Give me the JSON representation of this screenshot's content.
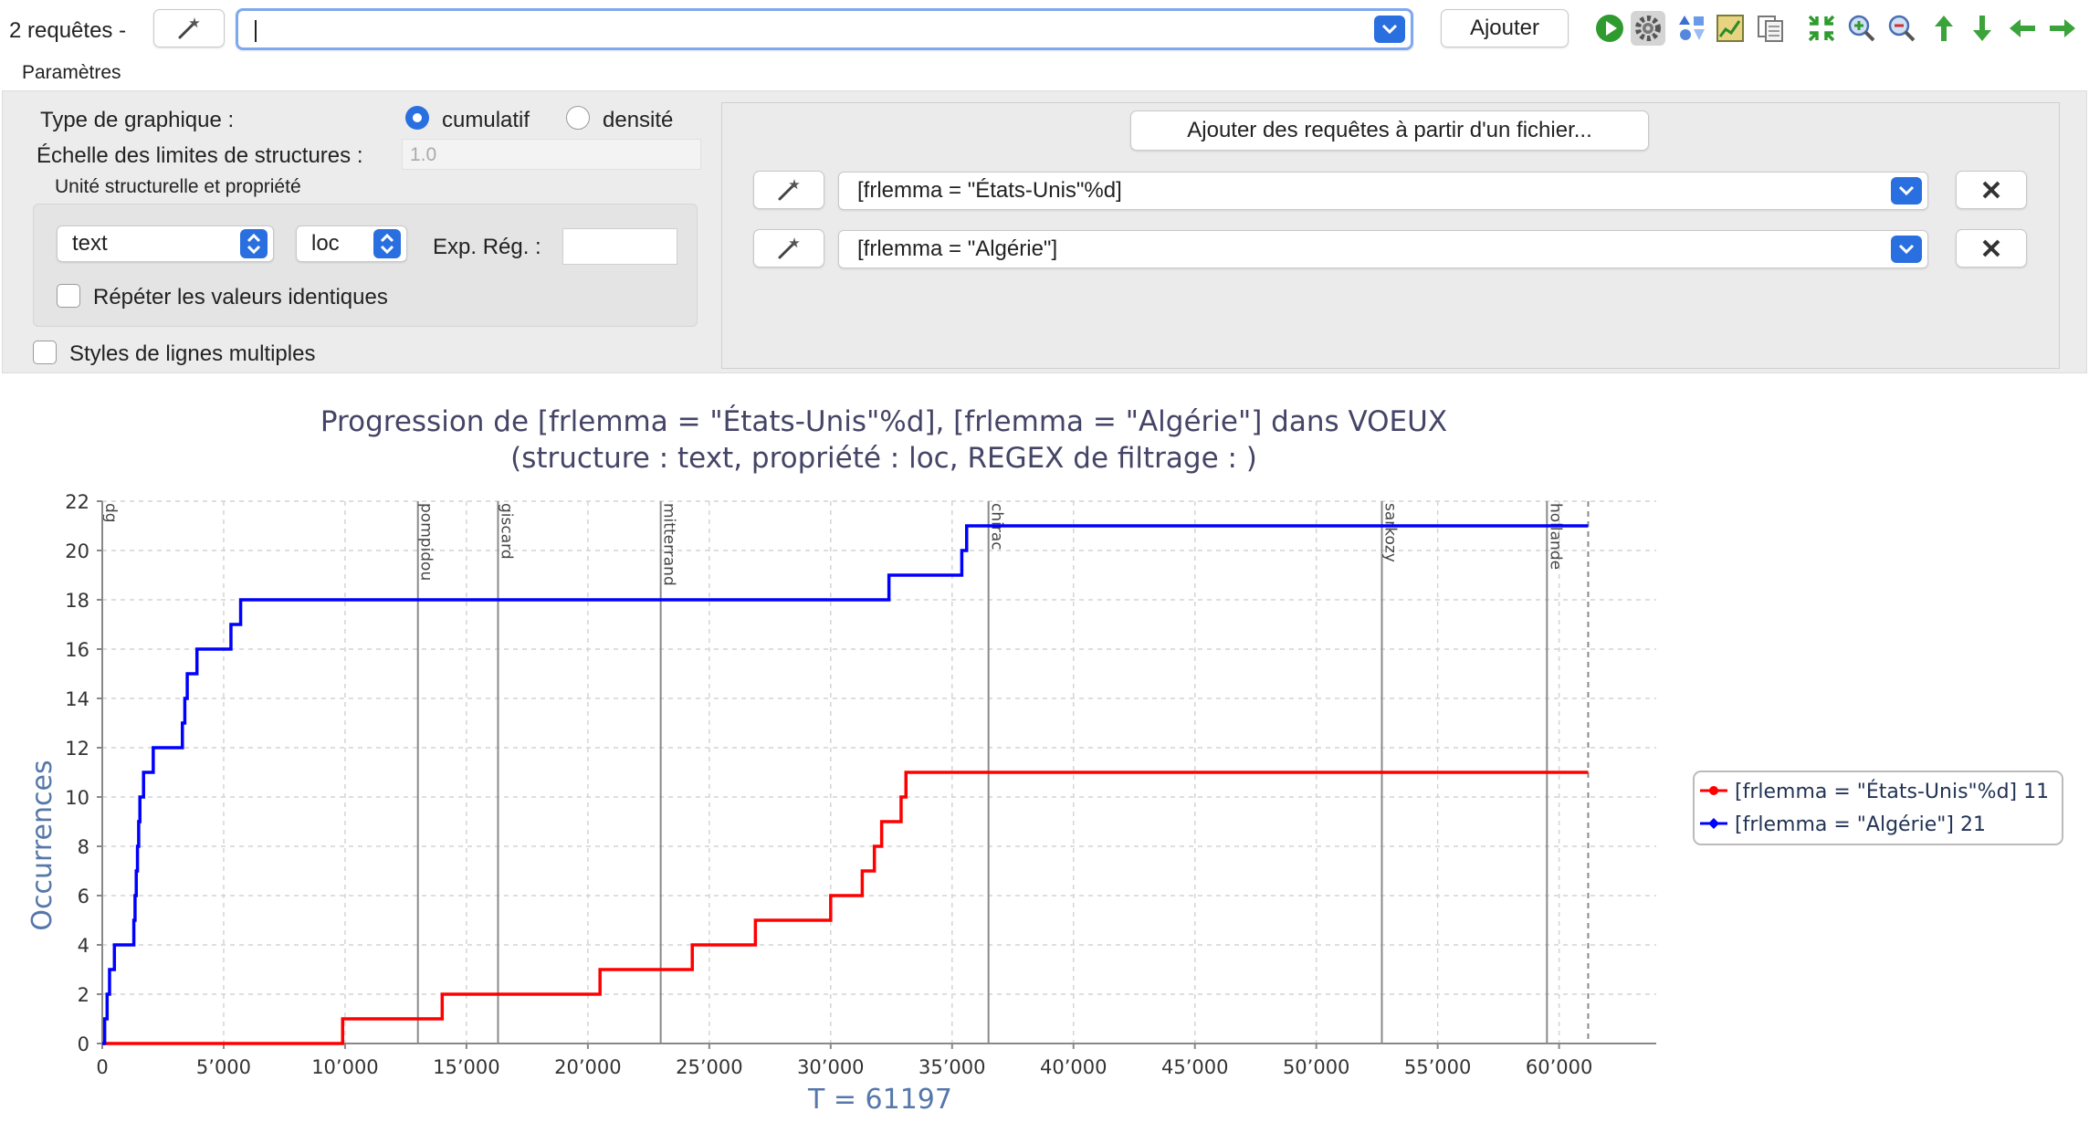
{
  "toolbar": {
    "query_count_label": "2 requêtes -",
    "query_input_value": "",
    "add_button_label": "Ajouter",
    "icons": [
      "play-icon",
      "settings-icon",
      "shapes-icon",
      "chart-export-icon",
      "copy-icon",
      "fit-icon",
      "zoom-in-icon",
      "zoom-out-icon",
      "arrow-up-icon",
      "arrow-down-icon",
      "arrow-left-icon",
      "arrow-right-icon"
    ]
  },
  "params": {
    "section_label": "Paramètres",
    "chart_type_label": "Type de graphique :",
    "option_cumulative": "cumulatif",
    "option_density": "densité",
    "selected_option": "cumulatif",
    "structure_scale_label": "Échelle des limites de structures :",
    "structure_scale_value": "1.0",
    "unit_group_label": "Unité structurelle et propriété",
    "unit_select_value": "text",
    "property_select_value": "loc",
    "regex_label": "Exp. Rég. :",
    "regex_value": "",
    "repeat_values_label": "Répéter les valeurs identiques",
    "multi_line_styles_label": "Styles de lignes multiples"
  },
  "queries_panel": {
    "add_from_file_label": "Ajouter des requêtes à partir d'un fichier...",
    "queries": [
      {
        "value": "[frlemma = \"États-Unis\"%d]"
      },
      {
        "value": "[frlemma = \"Algérie\"]"
      }
    ]
  },
  "chart_data": {
    "type": "line",
    "title": "Progression de [frlemma = \"États-Unis\"%d], [frlemma = \"Algérie\"] dans VOEUX",
    "subtitle": "(structure :  text, propriété :  loc, REGEX de filtrage : )",
    "xlabel": "T = 61197",
    "ylabel": "Occurrences",
    "xlim": [
      0,
      64000
    ],
    "ylim": [
      0,
      22
    ],
    "x_ticks": [
      0,
      5000,
      10000,
      15000,
      20000,
      25000,
      30000,
      35000,
      40000,
      45000,
      50000,
      55000,
      60000
    ],
    "x_tick_labels": [
      "0",
      "5’000",
      "10’000",
      "15’000",
      "20’000",
      "25’000",
      "30’000",
      "35’000",
      "40’000",
      "45’000",
      "50’000",
      "55’000",
      "60’000"
    ],
    "y_ticks": [
      0,
      2,
      4,
      6,
      8,
      10,
      12,
      14,
      16,
      18,
      20,
      22
    ],
    "grid": true,
    "legend_position": "right",
    "structure_markers": [
      {
        "label": "dg",
        "x": 0
      },
      {
        "label": "pompidou",
        "x": 13000
      },
      {
        "label": "giscard",
        "x": 16300
      },
      {
        "label": "mitterrand",
        "x": 23000
      },
      {
        "label": "chirac",
        "x": 36500
      },
      {
        "label": "sarkozy",
        "x": 52700
      },
      {
        "label": "hollande",
        "x": 59500
      }
    ],
    "end_x": 61197,
    "series": [
      {
        "name": "[frlemma = \"États-Unis\"%d] 11",
        "color": "#ff0000",
        "steps": [
          [
            0,
            0
          ],
          [
            9900,
            1
          ],
          [
            14000,
            2
          ],
          [
            20500,
            3
          ],
          [
            24300,
            4
          ],
          [
            26900,
            5
          ],
          [
            30000,
            6
          ],
          [
            31300,
            7
          ],
          [
            31800,
            8
          ],
          [
            32100,
            9
          ],
          [
            32900,
            10
          ],
          [
            33100,
            11
          ],
          [
            61197,
            11
          ]
        ]
      },
      {
        "name": "[frlemma = \"Algérie\"] 21",
        "color": "#0000ff",
        "steps": [
          [
            0,
            0
          ],
          [
            100,
            1
          ],
          [
            200,
            2
          ],
          [
            300,
            3
          ],
          [
            500,
            4
          ],
          [
            1300,
            5
          ],
          [
            1350,
            6
          ],
          [
            1400,
            7
          ],
          [
            1450,
            8
          ],
          [
            1500,
            9
          ],
          [
            1550,
            10
          ],
          [
            1700,
            11
          ],
          [
            2100,
            12
          ],
          [
            3300,
            13
          ],
          [
            3400,
            14
          ],
          [
            3500,
            15
          ],
          [
            3900,
            16
          ],
          [
            5300,
            17
          ],
          [
            5700,
            18
          ],
          [
            32400,
            19
          ],
          [
            35400,
            20
          ],
          [
            35600,
            21
          ],
          [
            61197,
            21
          ]
        ]
      }
    ]
  }
}
